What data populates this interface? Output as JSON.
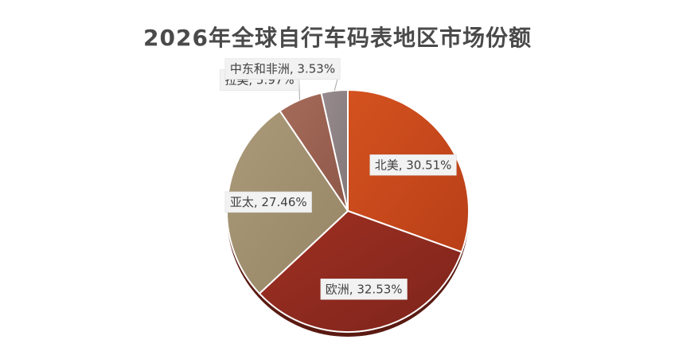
{
  "chart_data": {
    "type": "pie",
    "title": "2026年全球自行车码表地区市场份额",
    "categories": [
      "北美",
      "欧洲",
      "亚太",
      "拉美",
      "中东和非洲"
    ],
    "values": [
      30.51,
      32.53,
      27.46,
      5.97,
      3.53
    ],
    "unit": "%",
    "labels": [
      "北美, 30.51%",
      "欧洲, 32.53%",
      "亚太, 27.46%",
      "拉美, 5.97%",
      "中东和非洲, 3.53%"
    ],
    "colors": [
      "#c9481d",
      "#8f2a20",
      "#a39273",
      "#9a6252",
      "#8e8386"
    ],
    "legend": "none",
    "start_angle": "12 o'clock",
    "direction": "clockwise"
  }
}
